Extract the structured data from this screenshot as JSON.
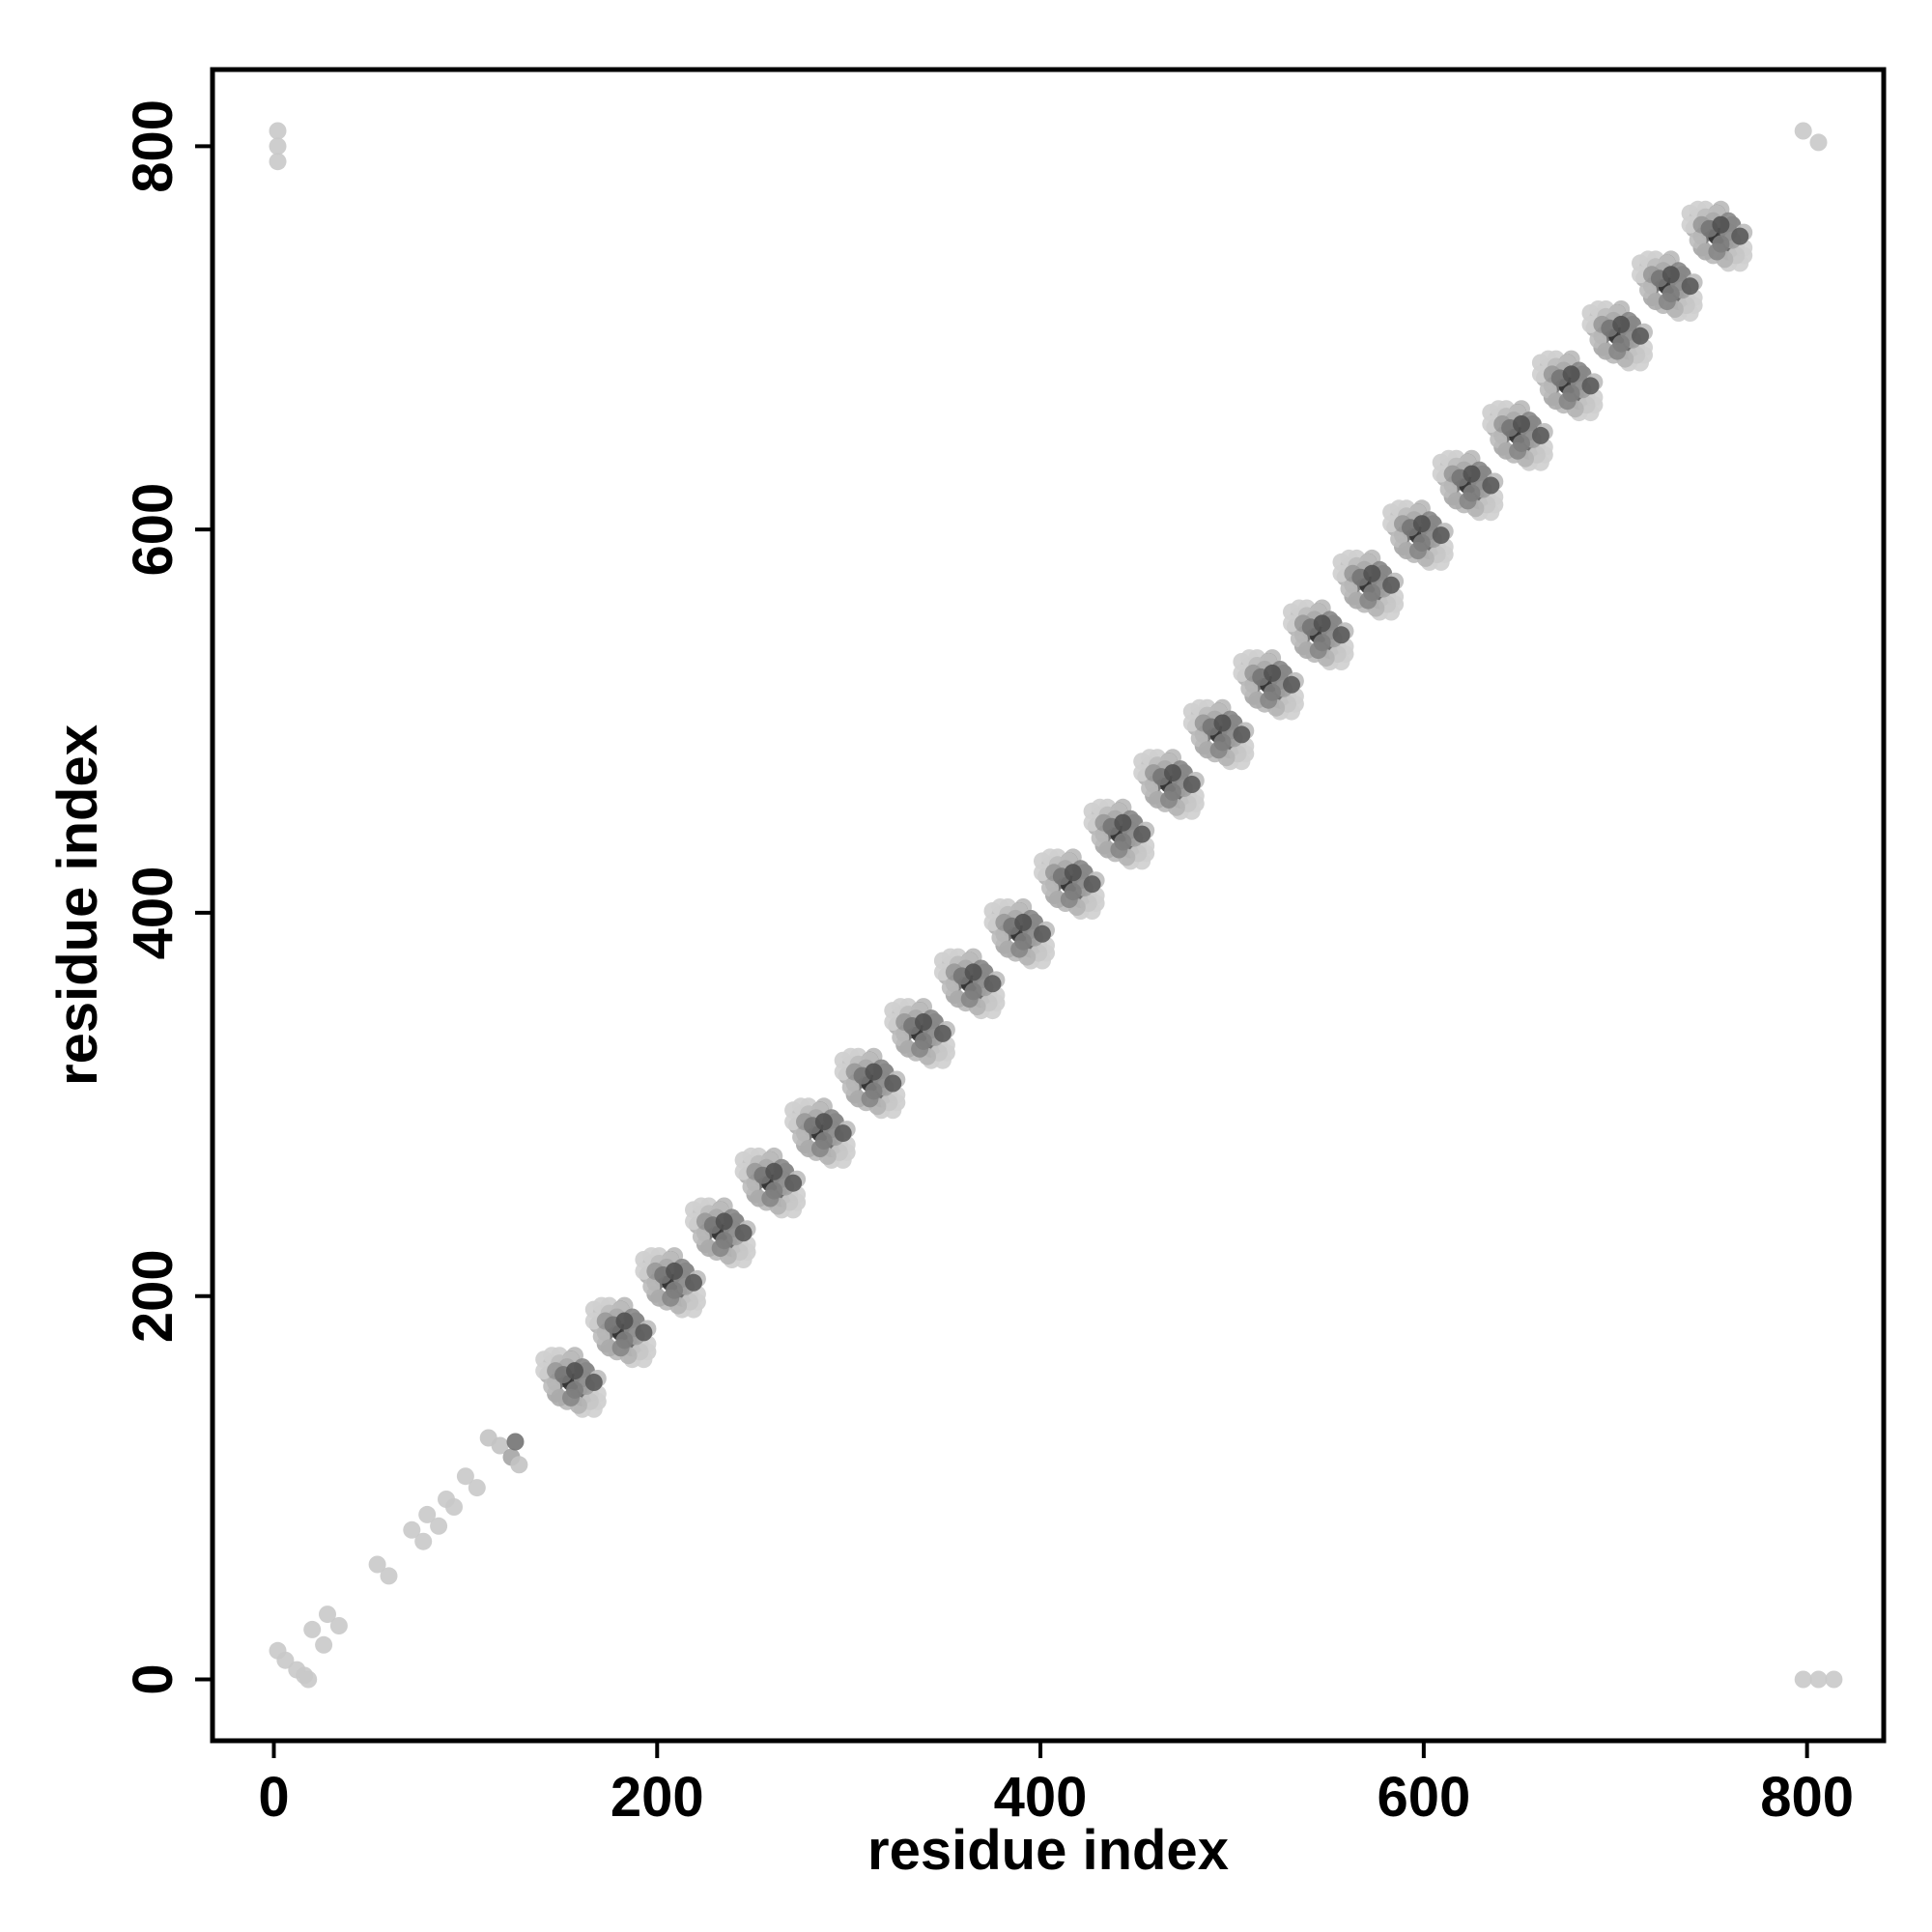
{
  "chart_data": {
    "type": "scatter",
    "title": "",
    "xlabel": "residue index",
    "ylabel": "residue index",
    "xlim": [
      -32,
      840
    ],
    "ylim": [
      -32,
      840
    ],
    "xticks": [
      0,
      200,
      400,
      600,
      800
    ],
    "yticks": [
      0,
      200,
      400,
      600,
      800
    ],
    "grid": false,
    "colors": {
      "dark": "#1a1a1a",
      "mid": "#6e6e6e",
      "light": "#c8c8c8",
      "faint": "#dcdcdc",
      "frame": "#000000"
    },
    "series": [
      {
        "points": [
          [
            2,
            808,
            0.12
          ],
          [
            2,
            800,
            0.12
          ],
          [
            2,
            792,
            0.12
          ],
          [
            2,
            15,
            0.12
          ],
          [
            6,
            10,
            0.12
          ],
          [
            12,
            5,
            0.12
          ],
          [
            16,
            2,
            0.12
          ],
          [
            18,
            0,
            0.12
          ],
          [
            20,
            26,
            0.12
          ],
          [
            26,
            18,
            0.12
          ],
          [
            28,
            34,
            0.12
          ],
          [
            34,
            28,
            0.12
          ],
          [
            54,
            60,
            0.12
          ],
          [
            60,
            54,
            0.12
          ],
          [
            72,
            78,
            0.12
          ],
          [
            78,
            72,
            0.12
          ],
          [
            80,
            86,
            0.12
          ],
          [
            86,
            80,
            0.12
          ],
          [
            90,
            94,
            0.12
          ],
          [
            94,
            90,
            0.12
          ],
          [
            100,
            106,
            0.12
          ],
          [
            106,
            100,
            0.12
          ],
          [
            112,
            126,
            0.15
          ],
          [
            118,
            122,
            0.15
          ],
          [
            124,
            116,
            0.3
          ],
          [
            126,
            124,
            0.55
          ],
          [
            128,
            112,
            0.15
          ],
          [
            798,
            0,
            0.12
          ],
          [
            806,
            0,
            0.12
          ],
          [
            814,
            0,
            0.12
          ],
          [
            798,
            808,
            0.12
          ],
          [
            806,
            802,
            0.12
          ]
        ]
      }
    ],
    "clusters": {
      "start": 155,
      "step": 26,
      "count": 24,
      "offsets": [
        [
          -10,
          10,
          0.15
        ],
        [
          -12,
          4,
          0.25
        ],
        [
          -8,
          -6,
          0.3
        ],
        [
          -4,
          2,
          0.55
        ],
        [
          -2,
          8,
          0.35
        ],
        [
          0,
          0,
          0.9
        ],
        [
          0,
          12,
          0.75
        ],
        [
          2,
          6,
          0.45
        ],
        [
          4,
          -4,
          0.6
        ],
        [
          6,
          2,
          0.8
        ],
        [
          6,
          -8,
          0.4
        ],
        [
          8,
          -2,
          0.3
        ],
        [
          10,
          -6,
          0.2
        ],
        [
          12,
          0,
          0.15
        ],
        [
          -14,
          12,
          0.1
        ],
        [
          -6,
          14,
          0.1
        ],
        [
          14,
          -10,
          0.1
        ],
        [
          6,
          -14,
          0.1
        ],
        [
          -2,
          -10,
          0.2
        ],
        [
          2,
          14,
          0.2
        ],
        [
          -8,
          0,
          0.5
        ],
        [
          8,
          6,
          0.5
        ]
      ]
    }
  }
}
